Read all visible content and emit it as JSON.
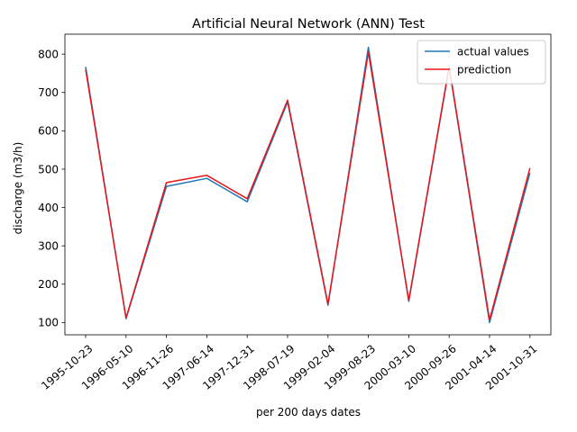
{
  "chart_data": {
    "type": "line",
    "title": "Artificial Neural Network (ANN) Test",
    "xlabel": "per 200 days dates",
    "ylabel": "discharge (m3/h)",
    "categories": [
      "1995-10-23",
      "1996-05-10",
      "1996-11-26",
      "1997-06-14",
      "1997-12-31",
      "1998-07-19",
      "1999-02-04",
      "1999-08-23",
      "2000-03-10",
      "2000-09-26",
      "2001-04-14",
      "2001-10-31"
    ],
    "ylim": [
      68,
      852
    ],
    "yticks": [
      100,
      200,
      300,
      400,
      500,
      600,
      700,
      800
    ],
    "grid": false,
    "legend_position": "top-right",
    "series": [
      {
        "name": "actual values",
        "color": "#1f77b4",
        "values": [
          767,
          110,
          455,
          476,
          415,
          675,
          145,
          818,
          155,
          765,
          100,
          490
        ]
      },
      {
        "name": "prediction",
        "color": "#e8161b",
        "values": [
          760,
          112,
          465,
          484,
          423,
          680,
          148,
          805,
          158,
          768,
          107,
          503
        ]
      }
    ]
  }
}
